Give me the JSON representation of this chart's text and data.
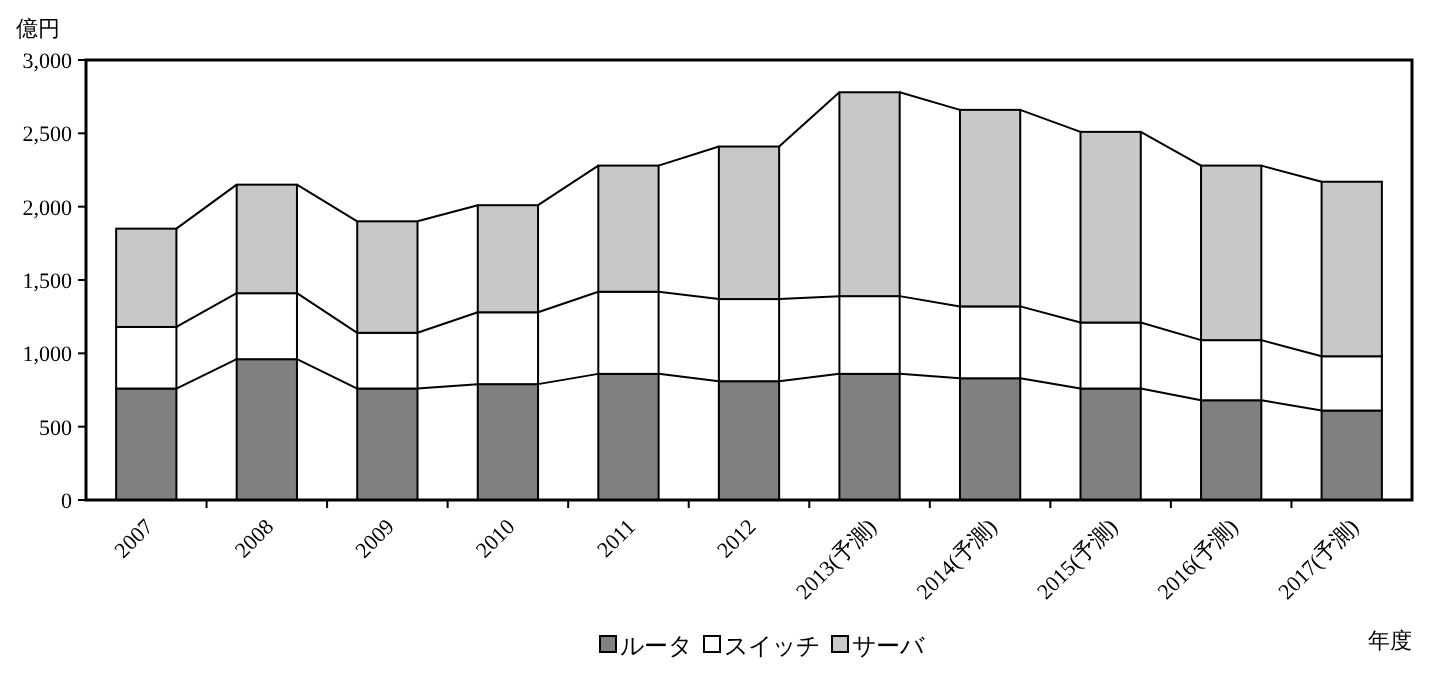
{
  "chart_data": {
    "type": "bar",
    "stacked": true,
    "ylabel": "億円",
    "xlabel": "年度",
    "categories": [
      "2007",
      "2008",
      "2009",
      "2010",
      "2011",
      "2012",
      "2013(予測)",
      "2014(予測)",
      "2015(予測)",
      "2016(予測)",
      "2017(予測)"
    ],
    "series": [
      {
        "name": "ルータ",
        "color": "#808080",
        "values": [
          760,
          960,
          760,
          790,
          860,
          810,
          860,
          830,
          760,
          680,
          610
        ]
      },
      {
        "name": "スイッチ",
        "color": "#ffffff",
        "values": [
          420,
          450,
          380,
          490,
          560,
          560,
          530,
          490,
          450,
          410,
          370
        ]
      },
      {
        "name": "サーバ",
        "color": "#c8c8c8",
        "values": [
          670,
          740,
          760,
          730,
          860,
          1040,
          1390,
          1340,
          1300,
          1190,
          1190
        ]
      }
    ],
    "ylim": [
      0,
      3000
    ],
    "yticks": [
      {
        "value": 0,
        "label": "0"
      },
      {
        "value": 500,
        "label": "500"
      },
      {
        "value": 1000,
        "label": "1,000"
      },
      {
        "value": 1500,
        "label": "1,500"
      },
      {
        "value": 2000,
        "label": "2,000"
      },
      {
        "value": 2500,
        "label": "2,500"
      },
      {
        "value": 3000,
        "label": "3,000"
      }
    ],
    "grid": false,
    "legend": "bottom"
  }
}
